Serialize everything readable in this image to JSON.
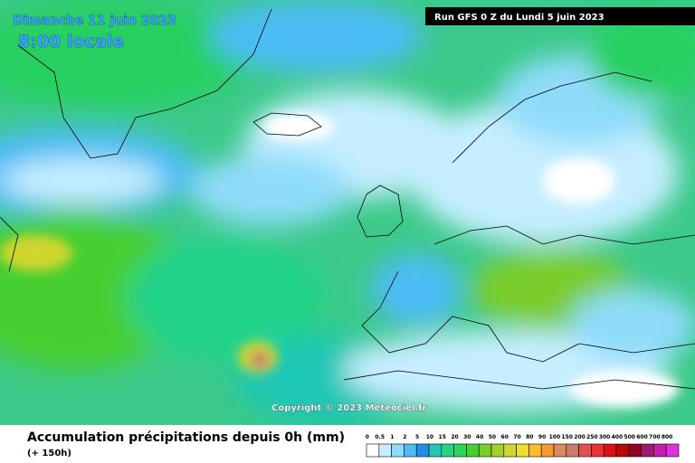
{
  "header": {
    "date": "Dimanche 11 juin 2023",
    "time": "8:00 locale",
    "run": "Run GFS 0 Z du Lundi 5 juin 2023"
  },
  "copyright": "Copyright © 2023 Meteociel.fr",
  "footer": {
    "title": "Accumulation précipitations depuis 0h (mm)",
    "subtitle": "(+ 150h)"
  },
  "legend": [
    {
      "label": "0",
      "color": "#ffffff"
    },
    {
      "label": "0.5",
      "color": "#c6eeff"
    },
    {
      "label": "1",
      "color": "#8fdcfa"
    },
    {
      "label": "2",
      "color": "#4cbcf5"
    },
    {
      "label": "5",
      "color": "#1f8fe6"
    },
    {
      "label": "10",
      "color": "#1ec8b4"
    },
    {
      "label": "15",
      "color": "#22d38a"
    },
    {
      "label": "20",
      "color": "#27d65a"
    },
    {
      "label": "30",
      "color": "#46cf32"
    },
    {
      "label": "40",
      "color": "#7acd2a"
    },
    {
      "label": "50",
      "color": "#a6cf2c"
    },
    {
      "label": "60",
      "color": "#cfd62e"
    },
    {
      "label": "70",
      "color": "#f0dc2a"
    },
    {
      "label": "80",
      "color": "#f7be28"
    },
    {
      "label": "90",
      "color": "#f79a2a"
    },
    {
      "label": "100",
      "color": "#dd8a5a"
    },
    {
      "label": "150",
      "color": "#cc7a6e"
    },
    {
      "label": "200",
      "color": "#e05050"
    },
    {
      "label": "250",
      "color": "#f03030"
    },
    {
      "label": "300",
      "color": "#e01010"
    },
    {
      "label": "400",
      "color": "#b80808"
    },
    {
      "label": "500",
      "color": "#900820"
    },
    {
      "label": "600",
      "color": "#a01870"
    },
    {
      "label": "700",
      "color": "#c020b0"
    },
    {
      "label": "800",
      "color": "#e030e0"
    }
  ]
}
